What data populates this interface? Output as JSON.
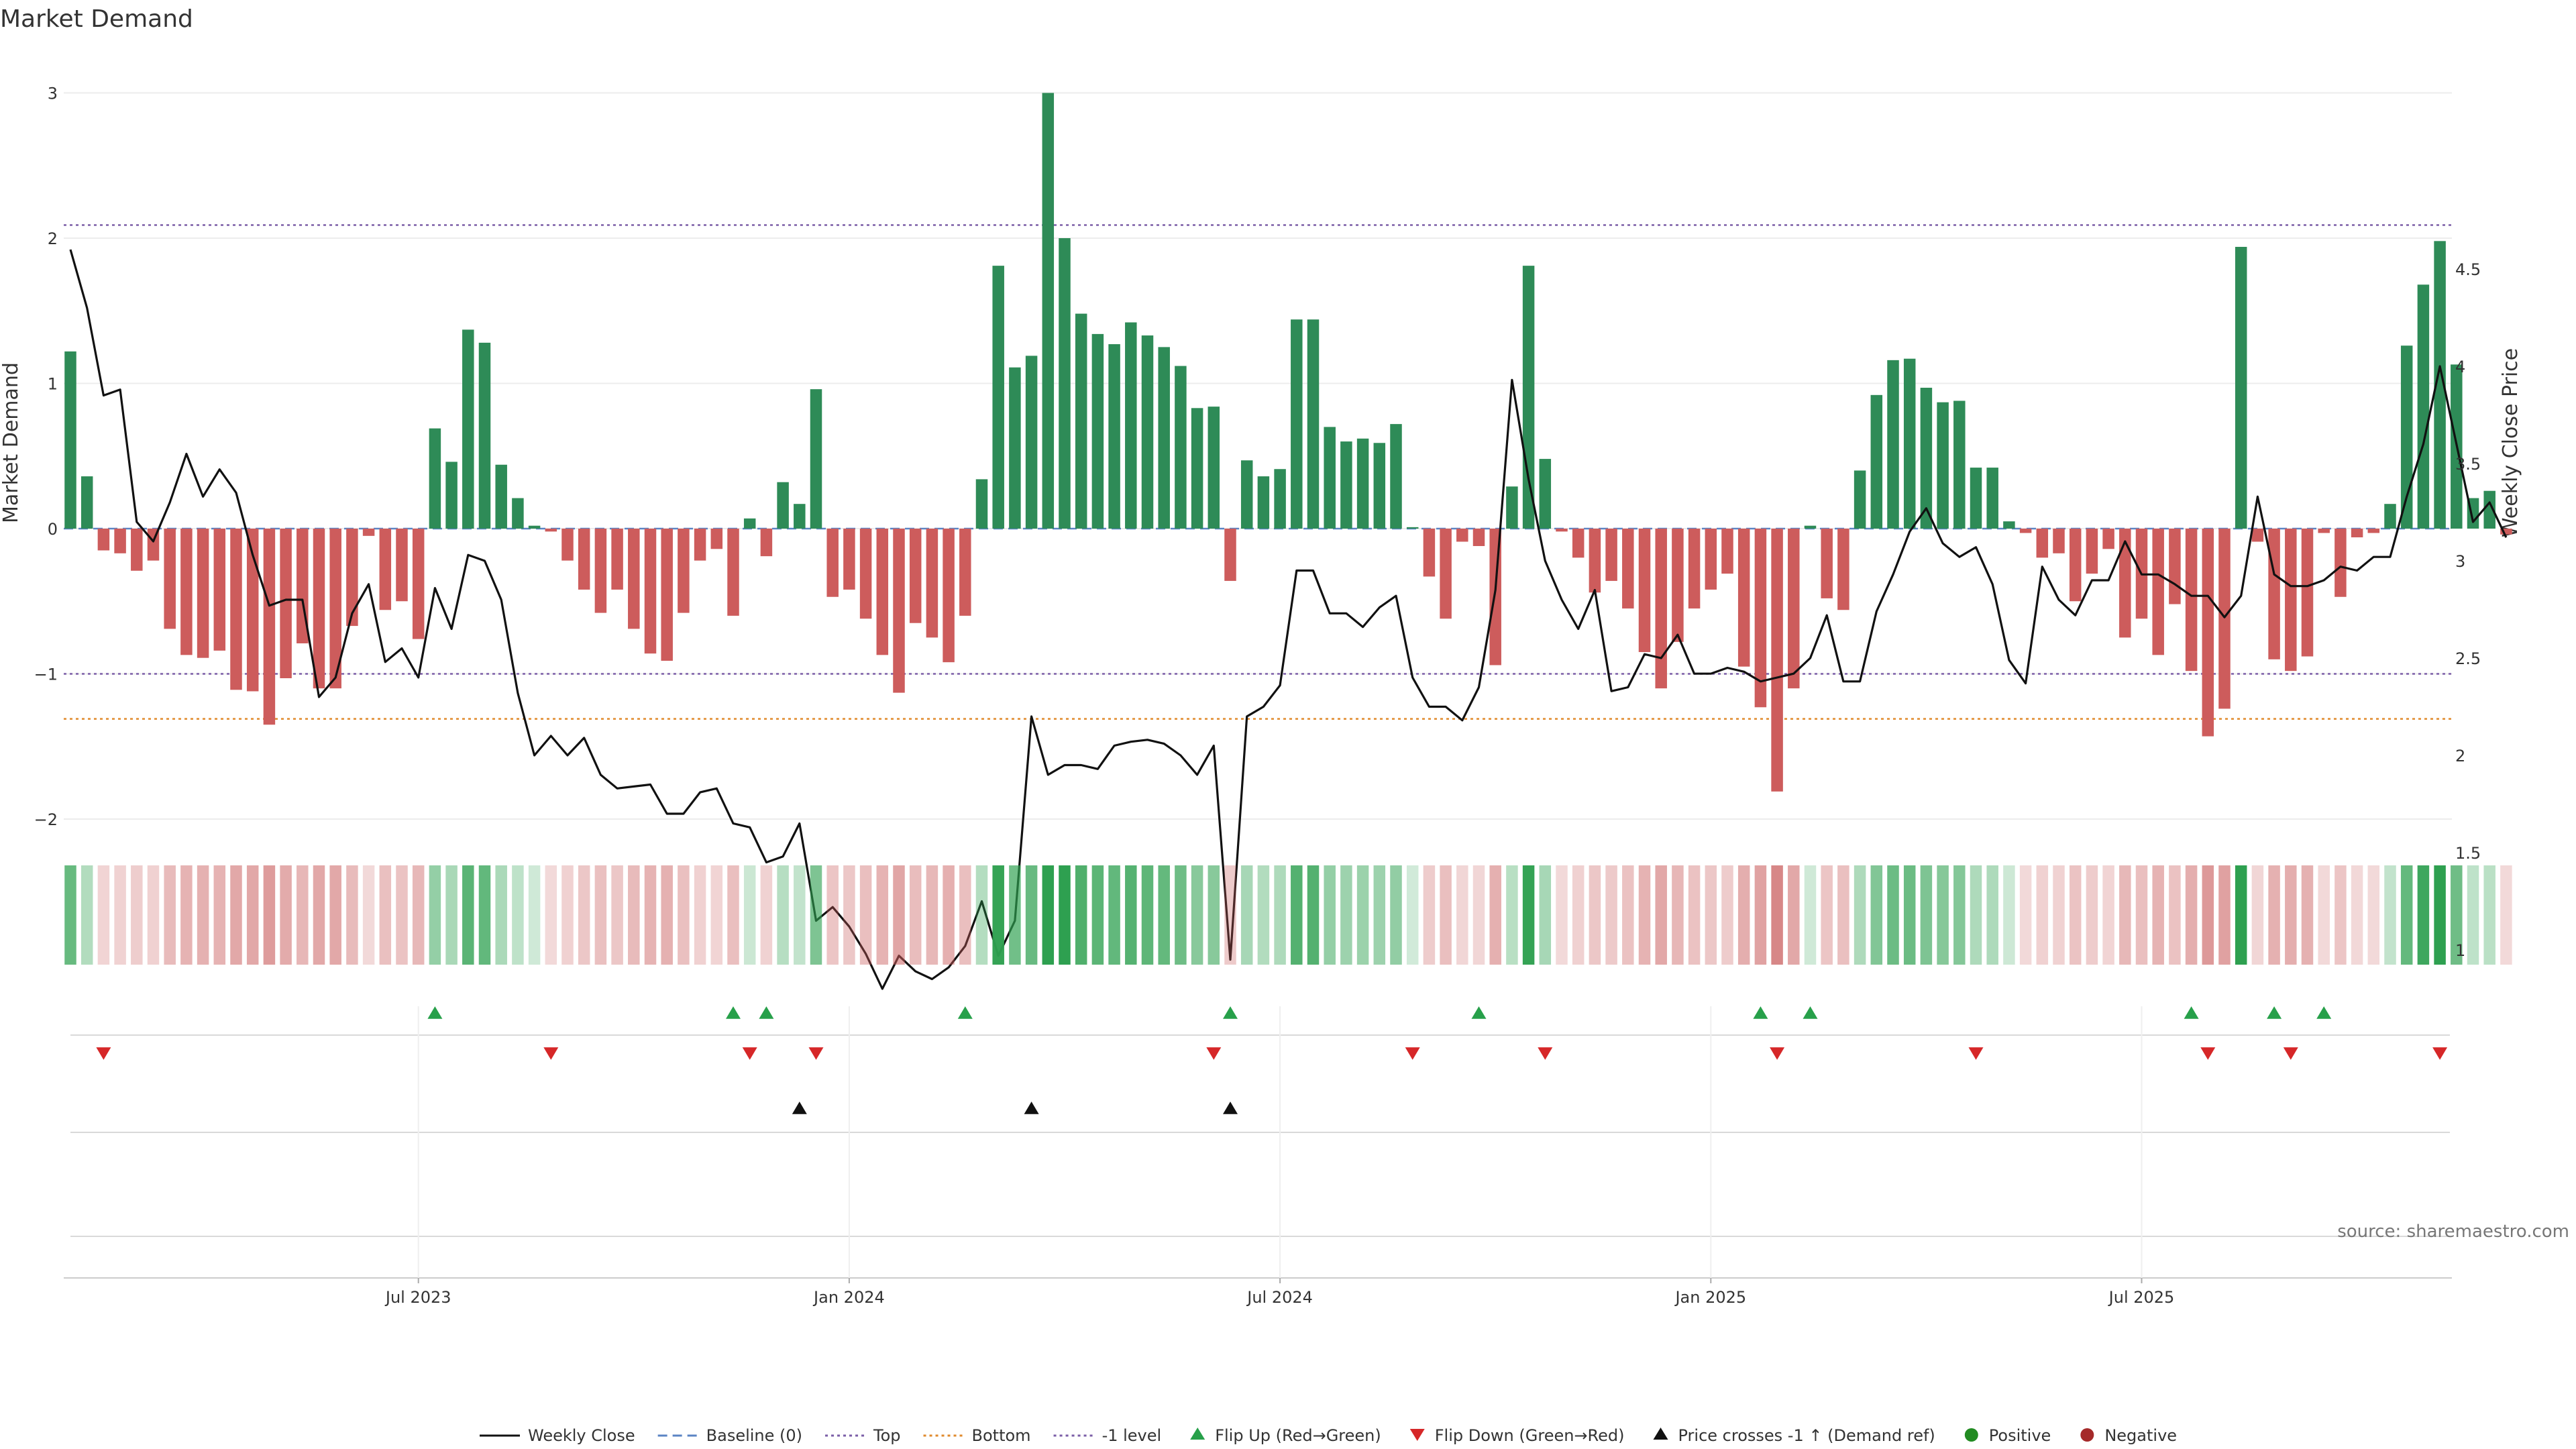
{
  "chart_data": {
    "type": "bar",
    "title": "Market Demand",
    "ylabel_left": "Market Demand",
    "ylabel_right": "Weekly Close Price",
    "ylim_left": [
      -2,
      3
    ],
    "ylim_right": [
      0.86,
      4.6
    ],
    "left_ticks": [
      "3",
      "2",
      "1",
      "0",
      "−1",
      "−2"
    ],
    "right_ticks": [
      "4.5",
      "4",
      "3.5",
      "3",
      "2.5",
      "2",
      "1.5",
      "1"
    ],
    "x_ticks": [
      {
        "label": "Jul 2023",
        "week": 21
      },
      {
        "label": "Jan 2024",
        "week": 47
      },
      {
        "label": "Jul 2024",
        "week": 73
      },
      {
        "label": "Jan 2025",
        "week": 99
      },
      {
        "label": "Jul 2025",
        "week": 125
      }
    ],
    "reference_lines": {
      "top": 2.09,
      "bottom": -1.31,
      "minus_one": -1.0,
      "baseline": 0
    },
    "demand": [
      1.22,
      0.36,
      -0.15,
      -0.17,
      -0.29,
      -0.22,
      -0.69,
      -0.87,
      -0.89,
      -0.84,
      -1.11,
      -1.12,
      -1.35,
      -1.03,
      -0.79,
      -1.1,
      -1.1,
      -0.67,
      -0.05,
      -0.56,
      -0.5,
      -0.76,
      0.69,
      0.46,
      1.37,
      1.28,
      0.44,
      0.21,
      0.02,
      -0.02,
      -0.22,
      -0.42,
      -0.58,
      -0.42,
      -0.69,
      -0.86,
      -0.91,
      -0.58,
      -0.22,
      -0.14,
      -0.6,
      0.07,
      -0.19,
      0.32,
      0.17,
      0.96,
      -0.47,
      -0.42,
      -0.62,
      -0.87,
      -1.13,
      -0.65,
      -0.75,
      -0.92,
      -0.6,
      0.34,
      1.81,
      1.11,
      1.19,
      3.0,
      2.0,
      1.48,
      1.34,
      1.27,
      1.42,
      1.33,
      1.25,
      1.12,
      0.83,
      0.84,
      -0.36,
      0.47,
      0.36,
      0.41,
      1.44,
      1.44,
      0.7,
      0.6,
      0.62,
      0.59,
      0.72,
      0.01,
      -0.33,
      -0.62,
      -0.09,
      -0.12,
      -0.94,
      0.29,
      1.81,
      0.48,
      -0.02,
      -0.2,
      -0.44,
      -0.36,
      -0.55,
      -0.85,
      -1.1,
      -0.78,
      -0.55,
      -0.42,
      -0.31,
      -0.95,
      -1.23,
      -1.81,
      -1.1,
      0.02,
      -0.48,
      -0.56,
      0.4,
      0.92,
      1.16,
      1.17,
      0.97,
      0.87,
      0.88,
      0.42,
      0.42,
      0.05,
      -0.03,
      -0.2,
      -0.17,
      -0.5,
      -0.31,
      -0.14,
      -0.75,
      -0.62,
      -0.87,
      -0.52,
      -0.98,
      -1.43,
      -1.24,
      1.94,
      -0.09,
      -0.9,
      -0.98,
      -0.88,
      -0.03,
      -0.47,
      -0.06,
      -0.03,
      0.17,
      1.26,
      1.68,
      1.98,
      1.13,
      0.21,
      0.26,
      -0.04
    ],
    "close": [
      4.6,
      4.3,
      3.85,
      3.88,
      3.2,
      3.1,
      3.3,
      3.55,
      3.33,
      3.47,
      3.35,
      3.03,
      2.77,
      2.8,
      2.8,
      2.3,
      2.4,
      2.73,
      2.88,
      2.48,
      2.55,
      2.4,
      2.86,
      2.65,
      3.03,
      3.0,
      2.8,
      2.32,
      2.0,
      2.1,
      2.0,
      2.09,
      1.9,
      1.83,
      1.84,
      1.85,
      1.7,
      1.7,
      1.81,
      1.83,
      1.65,
      1.63,
      1.45,
      1.48,
      1.65,
      1.15,
      1.22,
      1.12,
      0.98,
      0.8,
      0.97,
      0.89,
      0.85,
      0.91,
      1.02,
      1.25,
      0.97,
      1.15,
      2.2,
      1.9,
      1.95,
      1.95,
      1.93,
      2.05,
      2.07,
      2.08,
      2.06,
      2.0,
      1.9,
      2.05,
      0.95,
      2.2,
      2.25,
      2.36,
      2.95,
      2.95,
      2.73,
      2.73,
      2.66,
      2.76,
      2.82,
      2.4,
      2.25,
      2.25,
      2.18,
      2.35,
      2.85,
      3.93,
      3.42,
      3.0,
      2.8,
      2.65,
      2.85,
      2.33,
      2.35,
      2.52,
      2.5,
      2.62,
      2.42,
      2.42,
      2.45,
      2.43,
      2.38,
      2.4,
      2.42,
      2.5,
      2.72,
      2.38,
      2.38,
      2.74,
      2.93,
      3.15,
      3.27,
      3.09,
      3.02,
      3.07,
      2.88,
      2.49,
      2.37,
      2.97,
      2.8,
      2.72,
      2.9,
      2.9,
      3.1,
      2.93,
      2.93,
      2.88,
      2.82,
      2.82,
      2.71,
      2.82,
      3.33,
      2.93,
      2.87,
      2.87,
      2.9,
      2.97,
      2.95,
      3.02,
      3.02,
      3.33,
      3.6,
      4.0,
      3.6,
      3.2,
      3.3,
      3.12
    ],
    "flip_up_weeks": [
      22,
      40,
      42,
      54,
      70,
      85,
      102,
      105,
      128,
      133,
      136
    ],
    "flip_down_weeks": [
      2,
      29,
      41,
      45,
      69,
      81,
      89,
      103,
      115,
      129,
      134,
      143
    ],
    "price_cross_weeks": [
      44,
      58,
      70
    ],
    "legend": [
      {
        "label": "Weekly Close",
        "kind": "solid"
      },
      {
        "label": "Baseline (0)",
        "kind": "dash-blue"
      },
      {
        "label": "Top",
        "kind": "dot-purple"
      },
      {
        "label": "Bottom",
        "kind": "dot-orange"
      },
      {
        "label": "-1 level",
        "kind": "dot-purple2"
      },
      {
        "label": "Flip Up (Red→Green)",
        "kind": "tri-up-green"
      },
      {
        "label": "Flip Down (Green→Red)",
        "kind": "tri-down-red"
      },
      {
        "label": "Price crosses -1 ↑ (Demand ref)",
        "kind": "tri-up-black"
      },
      {
        "label": "Positive",
        "kind": "dot-green"
      },
      {
        "label": "Negative",
        "kind": "dot-red"
      }
    ]
  },
  "source_note": "source: sharemaestro.com",
  "colors": {
    "positive": "#2e8b57",
    "negative": "#cd5c5c",
    "line": "#111111",
    "top": "#7b5ea7",
    "bottom": "#e08a2c",
    "baseline": "#5b84c4",
    "flip_up": "#27a04a",
    "flip_down": "#d62728",
    "legend_positive": "#228b22",
    "legend_negative": "#a52a2a"
  }
}
